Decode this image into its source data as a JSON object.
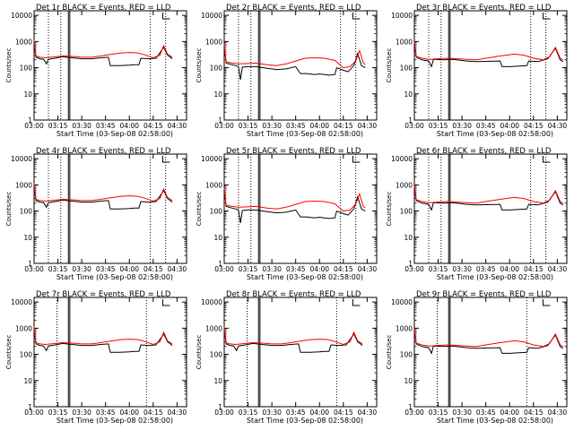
{
  "chart_data": [
    {
      "type": "line",
      "title": "Det 1r BLACK = Events, RED = LLD",
      "variant": "a",
      "sparse": false,
      "xlabel": "Start Time (03-Sep-08 02:58:00)",
      "ylabel": "Counts/sec",
      "y_scale": "log",
      "ylim": [
        1,
        15000
      ],
      "y_ticks": [
        "1",
        "10",
        "100",
        "1000",
        "10000"
      ],
      "x_ticks": [
        "03:00",
        "03:15",
        "03:30",
        "03:45",
        "04:00",
        "04:15",
        "04:30"
      ],
      "series": [
        {
          "name": "Events",
          "color": "#000000"
        },
        {
          "name": "LLD",
          "color": "#ff0000"
        }
      ]
    },
    {
      "type": "line",
      "title": "Det 2r BLACK = Events, RED = LLD",
      "variant": "b",
      "sparse": false,
      "xlabel": "Start Time (03-Sep-08 02:58:00)",
      "ylabel": "Counts/sec",
      "y_scale": "log",
      "ylim": [
        1,
        15000
      ],
      "y_ticks": [
        "1",
        "10",
        "100",
        "1000",
        "10000"
      ],
      "x_ticks": [
        "03:00",
        "03:15",
        "03:30",
        "03:45",
        "04:00",
        "04:15",
        "04:30"
      ],
      "series": [
        {
          "name": "Events",
          "color": "#000000"
        },
        {
          "name": "LLD",
          "color": "#ff0000"
        }
      ]
    },
    {
      "type": "line",
      "title": "Det 3r BLACK = Events, RED = LLD",
      "variant": "c",
      "sparse": false,
      "xlabel": "Start Time (03-Sep-08 02:58:00)",
      "ylabel": "Counts/sec",
      "y_scale": "log",
      "ylim": [
        1,
        15000
      ],
      "y_ticks": [
        "1",
        "10",
        "100",
        "1000",
        "10000"
      ],
      "x_ticks": [
        "03:00",
        "03:15",
        "03:30",
        "03:45",
        "04:00",
        "04:15",
        "04:30"
      ],
      "series": [
        {
          "name": "Events",
          "color": "#000000"
        },
        {
          "name": "LLD",
          "color": "#ff0000"
        }
      ]
    },
    {
      "type": "line",
      "title": "Det 4r BLACK = Events, RED = LLD",
      "variant": "a",
      "sparse": false,
      "xlabel": "Start Time (03-Sep-08 02:58:00)",
      "ylabel": "Counts/sec",
      "y_scale": "log",
      "ylim": [
        1,
        15000
      ],
      "y_ticks": [
        "1",
        "10",
        "100",
        "1000",
        "10000"
      ],
      "x_ticks": [
        "03:00",
        "03:15",
        "03:30",
        "03:45",
        "04:00",
        "04:15",
        "04:30"
      ],
      "series": [
        {
          "name": "Events",
          "color": "#000000"
        },
        {
          "name": "LLD",
          "color": "#ff0000"
        }
      ]
    },
    {
      "type": "line",
      "title": "Det 5r BLACK = Events, RED = LLD",
      "variant": "b",
      "sparse": false,
      "xlabel": "Start Time (03-Sep-08 02:58:00)",
      "ylabel": "Counts/sec",
      "y_scale": "log",
      "ylim": [
        1,
        15000
      ],
      "y_ticks": [
        "1",
        "10",
        "100",
        "1000",
        "10000"
      ],
      "x_ticks": [
        "03:00",
        "03:15",
        "03:30",
        "03:45",
        "04:00",
        "04:15",
        "04:30"
      ],
      "series": [
        {
          "name": "Events",
          "color": "#000000"
        },
        {
          "name": "LLD",
          "color": "#ff0000"
        }
      ]
    },
    {
      "type": "line",
      "title": "Det 6r BLACK = Events, RED = LLD",
      "variant": "c",
      "sparse": false,
      "xlabel": "Start Time (03-Sep-08 02:58:00)",
      "ylabel": "Counts/sec",
      "y_scale": "log",
      "ylim": [
        1,
        15000
      ],
      "y_ticks": [
        "1",
        "10",
        "100",
        "1000",
        "10000"
      ],
      "x_ticks": [
        "03:00",
        "03:15",
        "03:30",
        "03:45",
        "04:00",
        "04:15",
        "04:30"
      ],
      "series": [
        {
          "name": "Events",
          "color": "#000000"
        },
        {
          "name": "LLD",
          "color": "#ff0000"
        }
      ]
    },
    {
      "type": "line",
      "title": "Det 7r BLACK = Events, RED = LLD",
      "variant": "a",
      "sparse": true,
      "xlabel": "Start Time (03-Sep-08 02:58:00)",
      "ylabel": "Counts/sec",
      "y_scale": "log",
      "ylim": [
        1,
        15000
      ],
      "y_ticks": [
        "1",
        "10",
        "100",
        "1000",
        "10000"
      ],
      "x_ticks": [
        "03:00",
        "03:15",
        "03:30",
        "03:45",
        "04:00",
        "04:15",
        "04:30"
      ],
      "series": [
        {
          "name": "Events",
          "color": "#000000"
        },
        {
          "name": "LLD",
          "color": "#ff0000"
        }
      ]
    },
    {
      "type": "line",
      "title": "Det 8r BLACK = Events, RED = LLD",
      "variant": "a",
      "sparse": true,
      "xlabel": "Start Time (03-Sep-08 02:58:00)",
      "ylabel": "Counts/sec",
      "y_scale": "log",
      "ylim": [
        1,
        15000
      ],
      "y_ticks": [
        "1",
        "10",
        "100",
        "1000",
        "10000"
      ],
      "x_ticks": [
        "03:00",
        "03:15",
        "03:30",
        "03:45",
        "04:00",
        "04:15",
        "04:30"
      ],
      "series": [
        {
          "name": "Events",
          "color": "#000000"
        },
        {
          "name": "LLD",
          "color": "#ff0000"
        }
      ]
    },
    {
      "type": "line",
      "title": "Det 9r BLACK = Events, RED = LLD",
      "variant": "c",
      "sparse": true,
      "xlabel": "Start Time (03-Sep-08 02:58:00)",
      "ylabel": "Counts/sec",
      "y_scale": "log",
      "ylim": [
        1,
        15000
      ],
      "y_ticks": [
        "1",
        "10",
        "100",
        "1000",
        "10000"
      ],
      "x_ticks": [
        "03:00",
        "03:15",
        "03:30",
        "03:45",
        "04:00",
        "04:15",
        "04:30"
      ],
      "series": [
        {
          "name": "Events",
          "color": "#000000"
        },
        {
          "name": "LLD",
          "color": "#ff0000"
        }
      ]
    }
  ]
}
